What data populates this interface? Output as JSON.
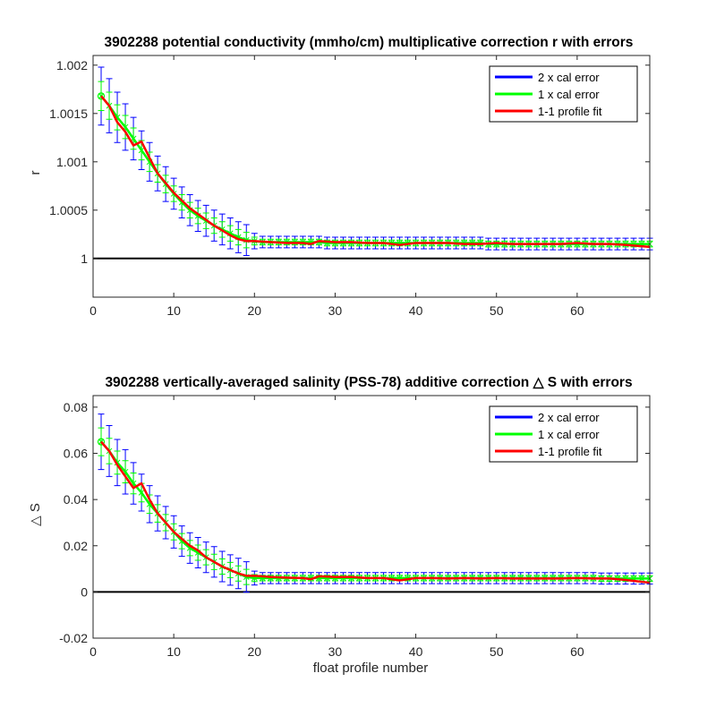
{
  "chart_data": [
    {
      "type": "line",
      "title": "3902288 potential conductivity (mmho/cm) multiplicative correction r with errors",
      "xlabel": "",
      "ylabel": "r",
      "xlim": [
        0,
        69
      ],
      "ylim": [
        0.9996,
        1.0021
      ],
      "xticks": [
        0,
        10,
        20,
        30,
        40,
        50,
        60
      ],
      "xtick_labels": [
        "0",
        "10",
        "20",
        "30",
        "40",
        "50",
        "60"
      ],
      "yticks": [
        1,
        1.0005,
        1.001,
        1.0015,
        1.002
      ],
      "ytick_labels": [
        "1",
        "1.0005",
        "1.001",
        "1.0015",
        "1.002"
      ],
      "grid": false,
      "legend_position": "top-right",
      "reference_line": 1,
      "legend": [
        {
          "label": "2 x cal error",
          "color": "#0000ff"
        },
        {
          "label": "1 x cal error",
          "color": "#00ff00"
        },
        {
          "label": "1-1 profile fit",
          "color": "#ff0000"
        }
      ],
      "cal_values": [
        1.00168,
        1.00158,
        1.00146,
        1.00136,
        1.00124,
        1.00112,
        1.001,
        1.00088,
        1.00077,
        1.00067,
        1.00058,
        1.0005,
        1.00044,
        1.00039,
        1.00034,
        1.0003,
        1.00026,
        1.00022,
        1.00019,
        1.00018,
        1.00017,
        1.00017,
        1.00017,
        1.00017,
        1.00017,
        1.00017,
        1.00017,
        1.00017,
        1.00016,
        1.00016,
        1.00016,
        1.00016,
        1.00016,
        1.00016,
        1.00016,
        1.00016,
        1.00016,
        1.00016,
        1.00016,
        1.00016,
        1.00016,
        1.00016,
        1.00016,
        1.00016,
        1.00016,
        1.00016,
        1.00016,
        1.00016,
        1.00015,
        1.00015,
        1.00015,
        1.00015,
        1.00015,
        1.00015,
        1.00015,
        1.00015,
        1.00015,
        1.00015,
        1.00015,
        1.00015,
        1.00015,
        1.00015,
        1.00015,
        1.00015,
        1.00015,
        1.00015,
        1.00015,
        1.00015,
        1.00015
      ],
      "cal_error_1x": [
        0.00015,
        0.00014,
        0.00013,
        0.00012,
        0.00011,
        0.0001,
        0.0001,
        9e-05,
        9e-05,
        8e-05,
        8e-05,
        8e-05,
        8e-05,
        8e-05,
        8e-05,
        8e-05,
        8e-05,
        8e-05,
        8e-05,
        4e-05,
        3e-05,
        3e-05,
        3e-05,
        3e-05,
        3e-05,
        3e-05,
        3e-05,
        3e-05,
        3e-05,
        3e-05,
        3e-05,
        3e-05,
        3e-05,
        3e-05,
        3e-05,
        3e-05,
        3e-05,
        3e-05,
        3e-05,
        3e-05,
        3e-05,
        3e-05,
        3e-05,
        3e-05,
        3e-05,
        3e-05,
        3e-05,
        3e-05,
        3e-05,
        3e-05,
        3e-05,
        3e-05,
        3e-05,
        3e-05,
        3e-05,
        3e-05,
        3e-05,
        3e-05,
        3e-05,
        3e-05,
        3e-05,
        3e-05,
        3e-05,
        3e-05,
        3e-05,
        3e-05,
        3e-05,
        3e-05,
        3e-05
      ],
      "fit_x": [
        1,
        2,
        3,
        4,
        5,
        6,
        7,
        8,
        9,
        10,
        11,
        12,
        13,
        14,
        15,
        16,
        17,
        18,
        19,
        20,
        22,
        24,
        26,
        27,
        28,
        30,
        32,
        34,
        36,
        38,
        40,
        42,
        44,
        46,
        48,
        50,
        52,
        54,
        56,
        58,
        60,
        62,
        64,
        66,
        69
      ],
      "fit_values": [
        1.00168,
        1.00158,
        1.00141,
        1.00131,
        1.00117,
        1.00121,
        1.00104,
        1.00088,
        1.00078,
        1.00068,
        1.0006,
        1.00052,
        1.00046,
        1.0004,
        1.00034,
        1.00029,
        1.00024,
        1.0002,
        1.00018,
        1.00018,
        1.00017,
        1.00016,
        1.00016,
        1.00015,
        1.00018,
        1.00017,
        1.00017,
        1.00016,
        1.00016,
        1.00014,
        1.00016,
        1.00016,
        1.00016,
        1.00015,
        1.00015,
        1.00016,
        1.00015,
        1.00015,
        1.00015,
        1.00015,
        1.00016,
        1.00015,
        1.00015,
        1.00014,
        1.00012
      ]
    },
    {
      "type": "line",
      "title": "3902288 vertically-averaged salinity (PSS-78) additive correction △ S with errors",
      "xlabel": "float profile number",
      "ylabel": "△ S",
      "xlim": [
        0,
        69
      ],
      "ylim": [
        -0.02,
        0.085
      ],
      "xticks": [
        0,
        10,
        20,
        30,
        40,
        50,
        60
      ],
      "xtick_labels": [
        "0",
        "10",
        "20",
        "30",
        "40",
        "50",
        "60"
      ],
      "yticks": [
        -0.02,
        0,
        0.02,
        0.04,
        0.06,
        0.08
      ],
      "ytick_labels": [
        "-0.02",
        "0",
        "0.02",
        "0.04",
        "0.06",
        "0.08"
      ],
      "grid": false,
      "legend_position": "top-right",
      "reference_line": 0,
      "legend": [
        {
          "label": "2 x cal error",
          "color": "#0000ff"
        },
        {
          "label": "1 x cal error",
          "color": "#00ff00"
        },
        {
          "label": "1-1 profile fit",
          "color": "#ff0000"
        }
      ],
      "cal_values": [
        0.065,
        0.061,
        0.056,
        0.052,
        0.047,
        0.043,
        0.038,
        0.034,
        0.03,
        0.026,
        0.022,
        0.019,
        0.017,
        0.015,
        0.013,
        0.011,
        0.0095,
        0.008,
        0.0065,
        0.006,
        0.006,
        0.006,
        0.006,
        0.006,
        0.006,
        0.006,
        0.006,
        0.006,
        0.006,
        0.006,
        0.006,
        0.006,
        0.006,
        0.006,
        0.006,
        0.006,
        0.006,
        0.006,
        0.006,
        0.006,
        0.006,
        0.006,
        0.006,
        0.006,
        0.006,
        0.006,
        0.006,
        0.006,
        0.006,
        0.006,
        0.006,
        0.006,
        0.006,
        0.006,
        0.006,
        0.006,
        0.006,
        0.006,
        0.006,
        0.006,
        0.006,
        0.006,
        0.0058,
        0.0058,
        0.0058,
        0.0058,
        0.0058,
        0.0058,
        0.0058
      ],
      "cal_error_1x": [
        0.006,
        0.0055,
        0.005,
        0.0048,
        0.0045,
        0.004,
        0.004,
        0.0038,
        0.0035,
        0.0035,
        0.0033,
        0.0033,
        0.0033,
        0.0033,
        0.0033,
        0.0033,
        0.0033,
        0.0033,
        0.0033,
        0.0015,
        0.0012,
        0.0012,
        0.0012,
        0.0012,
        0.0012,
        0.0012,
        0.0012,
        0.0012,
        0.0012,
        0.0012,
        0.0012,
        0.0012,
        0.0012,
        0.0012,
        0.0012,
        0.0012,
        0.0012,
        0.0012,
        0.0012,
        0.0012,
        0.0012,
        0.0012,
        0.0012,
        0.0012,
        0.0012,
        0.0012,
        0.0012,
        0.0012,
        0.0012,
        0.0012,
        0.0012,
        0.0012,
        0.0012,
        0.0012,
        0.0012,
        0.0012,
        0.0012,
        0.0012,
        0.0012,
        0.0012,
        0.0012,
        0.0012,
        0.0012,
        0.0012,
        0.0012,
        0.0012,
        0.0012,
        0.0012,
        0.0012
      ],
      "fit_x": [
        1,
        2,
        3,
        4,
        5,
        6,
        7,
        8,
        9,
        10,
        11,
        12,
        13,
        14,
        15,
        16,
        17,
        18,
        19,
        20,
        22,
        24,
        26,
        27,
        28,
        30,
        32,
        34,
        36,
        38,
        40,
        42,
        44,
        46,
        48,
        50,
        52,
        54,
        56,
        58,
        60,
        62,
        64,
        66,
        69
      ],
      "fit_values": [
        0.065,
        0.061,
        0.055,
        0.05,
        0.045,
        0.047,
        0.04,
        0.034,
        0.03,
        0.026,
        0.023,
        0.02,
        0.018,
        0.015,
        0.013,
        0.011,
        0.0095,
        0.008,
        0.007,
        0.007,
        0.0065,
        0.0062,
        0.006,
        0.0055,
        0.0068,
        0.0065,
        0.0065,
        0.006,
        0.006,
        0.005,
        0.006,
        0.006,
        0.0058,
        0.006,
        0.0058,
        0.006,
        0.0058,
        0.0058,
        0.0058,
        0.0058,
        0.006,
        0.0058,
        0.0058,
        0.0052,
        0.004
      ]
    }
  ]
}
